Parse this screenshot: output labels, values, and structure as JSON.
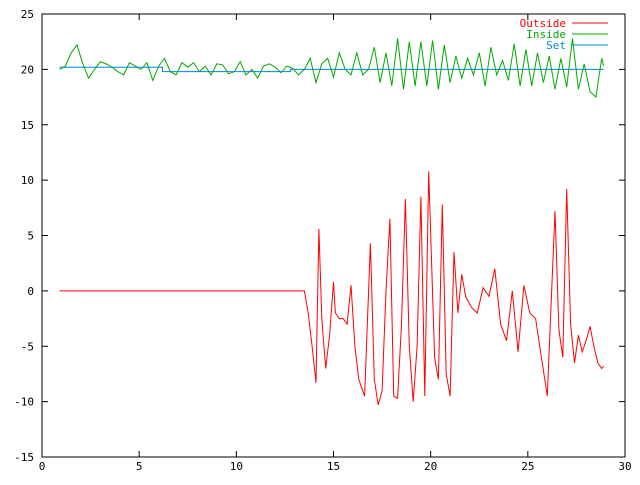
{
  "chart_data": {
    "type": "line",
    "title": "",
    "xlabel": "",
    "ylabel": "",
    "xlim": [
      0,
      30
    ],
    "ylim": [
      -15,
      25
    ],
    "x_ticks": [
      "0",
      "5",
      "10",
      "15",
      "20",
      "25",
      "30"
    ],
    "y_ticks": [
      "-15",
      "-10",
      "-5",
      "0",
      "5",
      "10",
      "15",
      "20",
      "25"
    ],
    "grid": false,
    "legend_position": "top-right",
    "series": [
      {
        "name": "Outside",
        "color": "#ff0000",
        "x": [
          0.9,
          13.5,
          13.7,
          13.9,
          14.1,
          14.25,
          14.4,
          14.6,
          14.8,
          15.0,
          15.1,
          15.3,
          15.5,
          15.7,
          15.9,
          16.1,
          16.3,
          16.6,
          16.9,
          17.1,
          17.3,
          17.5,
          17.7,
          17.9,
          18.1,
          18.3,
          18.5,
          18.7,
          18.9,
          19.1,
          19.3,
          19.5,
          19.7,
          19.9,
          20.2,
          20.4,
          20.6,
          20.8,
          21.0,
          21.2,
          21.4,
          21.6,
          21.8,
          22.1,
          22.4,
          22.7,
          23.0,
          23.3,
          23.6,
          23.9,
          24.2,
          24.5,
          24.8,
          25.1,
          25.4,
          25.7,
          26.0,
          26.2,
          26.4,
          26.6,
          26.8,
          27.0,
          27.2,
          27.4,
          27.6,
          27.8,
          28.0,
          28.2,
          28.4,
          28.6,
          28.8,
          28.9
        ],
        "values": [
          0,
          0,
          -2,
          -5,
          -8.3,
          5.6,
          -2.5,
          -7,
          -4,
          0.8,
          -2,
          -2.5,
          -2.5,
          -3,
          0.5,
          -5,
          -8,
          -9.5,
          4.3,
          -8,
          -10.3,
          -9,
          0,
          6.5,
          -9.5,
          -9.7,
          -3,
          8.3,
          -5,
          -10,
          -5,
          8.5,
          -9.5,
          10.8,
          -6,
          -8,
          7.8,
          -7.5,
          -9.5,
          3.5,
          -2,
          1.5,
          -0.5,
          -1.5,
          -2,
          0.3,
          -0.5,
          2,
          -3,
          -4.5,
          0,
          -5.5,
          0.5,
          -2,
          -2.5,
          -6,
          -9.5,
          -1,
          7.2,
          -3.5,
          -6,
          9.2,
          -3,
          -6.5,
          -4,
          -5.5,
          -4.5,
          -3.2,
          -5,
          -6.5,
          -7,
          -6.8
        ]
      },
      {
        "name": "Inside",
        "color": "#00aa00",
        "x": [
          0.9,
          1.2,
          1.5,
          1.8,
          2.1,
          2.4,
          2.7,
          3.0,
          3.3,
          3.6,
          3.9,
          4.2,
          4.5,
          4.8,
          5.1,
          5.4,
          5.7,
          6.0,
          6.3,
          6.6,
          6.9,
          7.2,
          7.5,
          7.8,
          8.1,
          8.4,
          8.7,
          9.0,
          9.3,
          9.6,
          9.9,
          10.2,
          10.5,
          10.8,
          11.1,
          11.4,
          11.7,
          12.0,
          12.3,
          12.6,
          12.9,
          13.2,
          13.5,
          13.8,
          14.1,
          14.4,
          14.7,
          15.0,
          15.3,
          15.6,
          15.9,
          16.2,
          16.5,
          16.8,
          17.1,
          17.4,
          17.7,
          18.0,
          18.3,
          18.6,
          18.9,
          19.2,
          19.5,
          19.8,
          20.1,
          20.4,
          20.7,
          21.0,
          21.3,
          21.6,
          21.9,
          22.2,
          22.5,
          22.8,
          23.1,
          23.4,
          23.7,
          24.0,
          24.3,
          24.6,
          24.9,
          25.2,
          25.5,
          25.8,
          26.1,
          26.4,
          26.7,
          27.0,
          27.3,
          27.6,
          27.9,
          28.2,
          28.5,
          28.8,
          28.9
        ],
        "values": [
          20,
          20.3,
          21.5,
          22.2,
          20.5,
          19.2,
          20.0,
          20.7,
          20.5,
          20.2,
          19.8,
          19.5,
          20.6,
          20.3,
          20.0,
          20.6,
          19.0,
          20.3,
          21.0,
          19.8,
          19.5,
          20.6,
          20.2,
          20.6,
          19.8,
          20.3,
          19.5,
          20.5,
          20.4,
          19.6,
          19.8,
          20.7,
          19.5,
          20.0,
          19.2,
          20.3,
          20.5,
          20.2,
          19.7,
          20.3,
          20.1,
          19.5,
          20.0,
          21.0,
          18.8,
          20.5,
          21.0,
          19.3,
          21.5,
          20.0,
          19.5,
          21.5,
          19.5,
          20.0,
          22.0,
          18.8,
          21.5,
          18.5,
          22.8,
          18.2,
          22.5,
          18.5,
          22.5,
          18.5,
          22.6,
          18.2,
          22.2,
          18.8,
          21.2,
          19.2,
          21.0,
          19.5,
          21.5,
          18.5,
          22.0,
          19.5,
          20.8,
          19.0,
          22.3,
          18.5,
          21.8,
          18.5,
          21.5,
          18.8,
          21.2,
          18.2,
          21.0,
          18.4,
          22.8,
          18.2,
          20.5,
          18.0,
          17.5,
          21.0,
          20.3
        ]
      },
      {
        "name": "Set",
        "color": "#0088cc",
        "x": [
          0.9,
          6.2,
          6.2,
          12.8,
          12.8,
          28.9
        ],
        "values": [
          20.2,
          20.2,
          19.8,
          19.8,
          20.0,
          20.0
        ]
      }
    ]
  }
}
